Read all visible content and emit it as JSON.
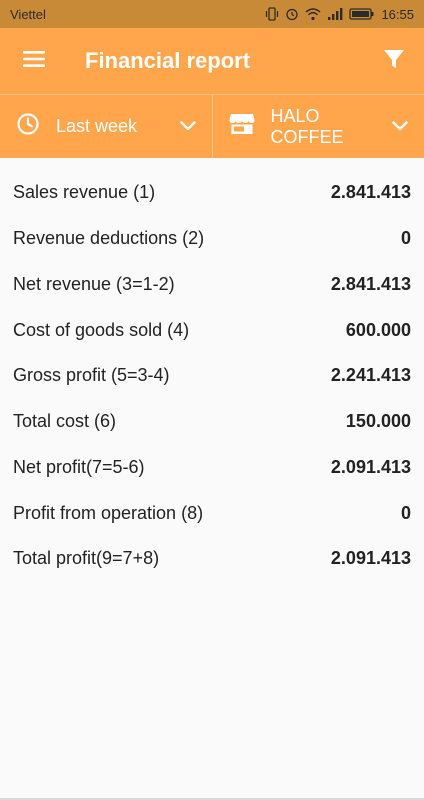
{
  "status_bar": {
    "carrier": "Viettel",
    "time": "16:55"
  },
  "app_bar": {
    "title": "Financial report"
  },
  "filters": {
    "period": "Last week",
    "store": "HALO\nCOFFEE"
  },
  "report": {
    "rows": [
      {
        "label": "Sales revenue (1)",
        "value": "2.841.413"
      },
      {
        "label": "Revenue deductions (2)",
        "value": "0"
      },
      {
        "label": "Net revenue (3=1-2)",
        "value": "2.841.413"
      },
      {
        "label": "Cost of goods sold (4)",
        "value": "600.000"
      },
      {
        "label": "Gross profit (5=3-4)",
        "value": "2.241.413"
      },
      {
        "label": "Total cost (6)",
        "value": "150.000"
      },
      {
        "label": "Net profit(7=5-6)",
        "value": "2.091.413"
      },
      {
        "label": "Profit from operation (8)",
        "value": "0"
      },
      {
        "label": "Total profit(9=7+8)",
        "value": "2.091.413"
      }
    ]
  },
  "colors": {
    "accent": "#ffa64d",
    "status_bar": "#c98a38"
  },
  "icons": [
    "vibrate-icon",
    "alarm-icon",
    "wifi-icon",
    "signal-icon",
    "battery-icon",
    "menu-icon",
    "filter-icon",
    "clock-icon",
    "chevron-down-icon",
    "store-icon"
  ]
}
